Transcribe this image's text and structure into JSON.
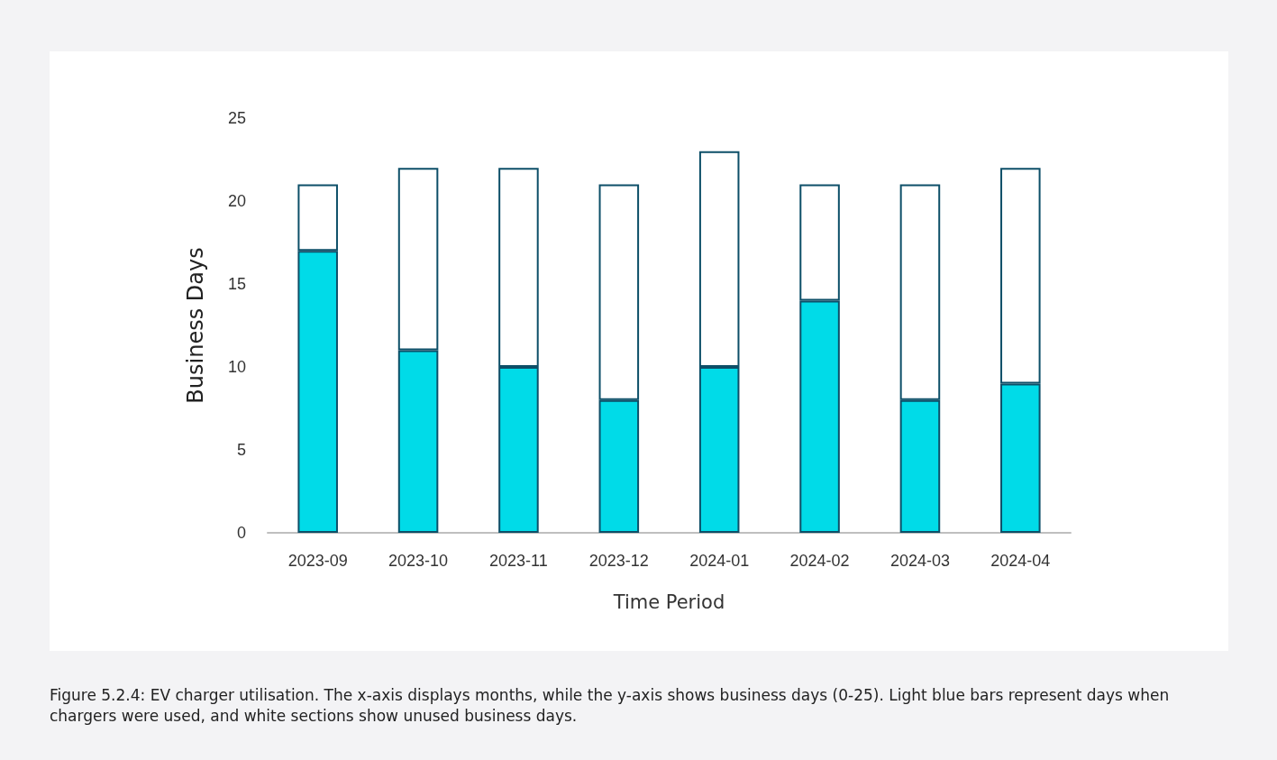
{
  "chart_data": {
    "type": "bar",
    "stacked": true,
    "xlabel": "Time Period",
    "ylabel": "Business Days",
    "categories": [
      "2023-09",
      "2023-10",
      "2023-11",
      "2023-12",
      "2024-01",
      "2024-02",
      "2024-03",
      "2024-04"
    ],
    "series": [
      {
        "color": "#00dbe8",
        "values": [
          17,
          11,
          10,
          8,
          10,
          14,
          8,
          9
        ]
      },
      {
        "color": "#ffffff",
        "values": [
          4,
          11,
          12,
          13,
          13,
          7,
          13,
          13
        ]
      }
    ],
    "ylim": [
      0,
      25
    ],
    "yticks": [
      0,
      5,
      10,
      15,
      20,
      25
    ],
    "annotations": [
      "Figure 5.2.4: EV charger utilisation. The x-axis displays months, while the y-axis shows business days (0-25). Light blue bars represent days when chargers were used, and white sections show unused business days."
    ]
  }
}
